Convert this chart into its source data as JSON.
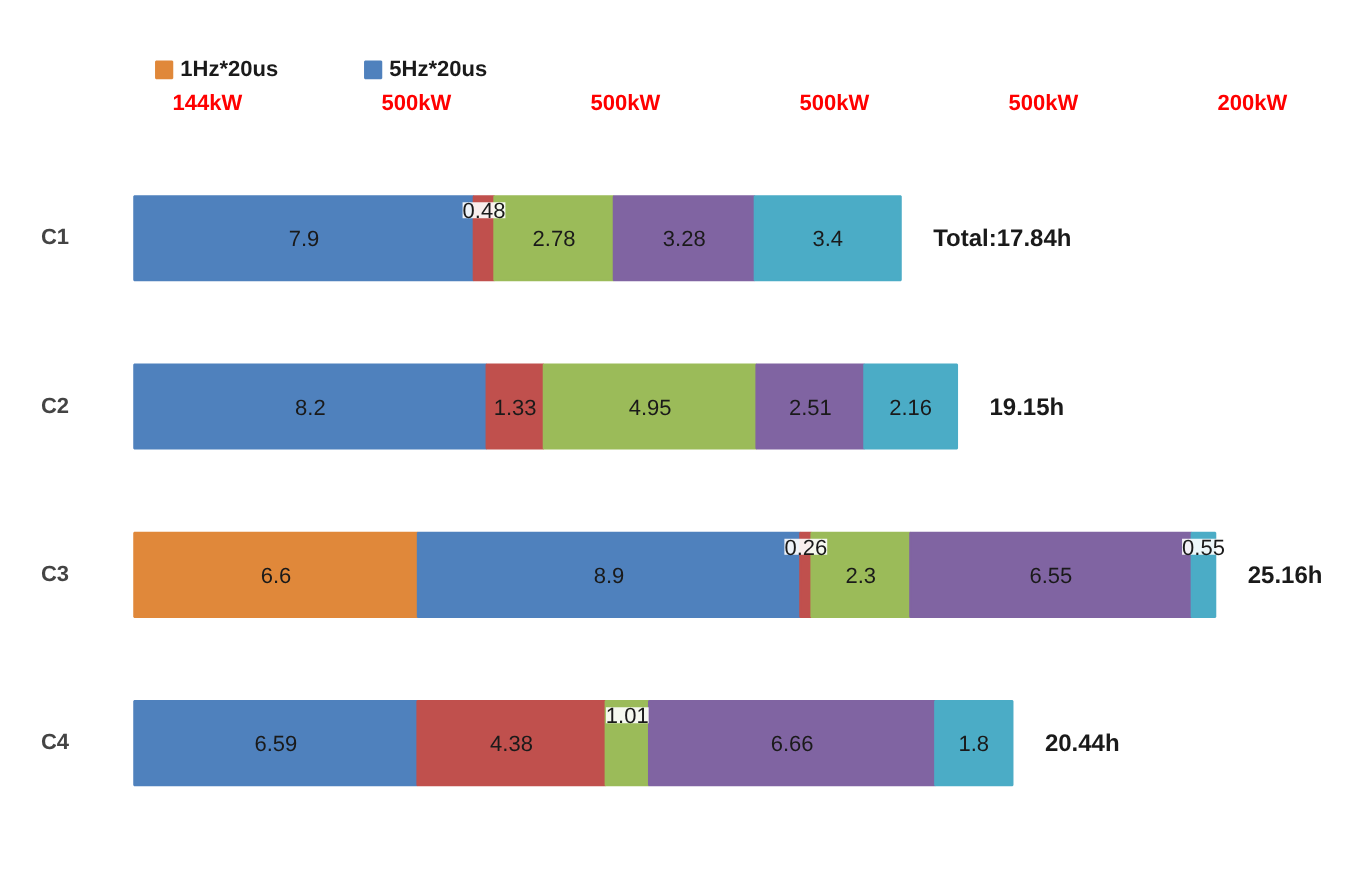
{
  "chart_data": {
    "type": "bar",
    "orientation": "horizontal",
    "stacked": true,
    "categories": [
      "C1",
      "C2",
      "C3",
      "C4"
    ],
    "series": [
      {
        "name": "1Hz*20us",
        "color": "#e0883a",
        "values": [
          null,
          null,
          6.6,
          null
        ]
      },
      {
        "name": "5Hz*20us",
        "color": "#4f81bd",
        "values": [
          7.9,
          8.2,
          8.9,
          6.59
        ]
      },
      {
        "color": "#c0504d",
        "values": [
          0.48,
          1.33,
          0.26,
          4.38
        ]
      },
      {
        "color": "#9bbb59",
        "values": [
          2.78,
          4.95,
          2.3,
          1.01
        ]
      },
      {
        "color": "#8064a2",
        "values": [
          3.28,
          2.51,
          6.55,
          6.66
        ]
      },
      {
        "color": "#4bacc6",
        "values": [
          3.4,
          2.16,
          0.55,
          1.8
        ]
      }
    ],
    "data_labels": true,
    "totals": [
      "Total:17.84h",
      "19.15h",
      "25.16h",
      "20.44h"
    ],
    "annotations": [
      "144kW",
      "500kW",
      "500kW",
      "500kW",
      "500kW",
      "200kW"
    ],
    "legend": "top",
    "grid": false
  }
}
